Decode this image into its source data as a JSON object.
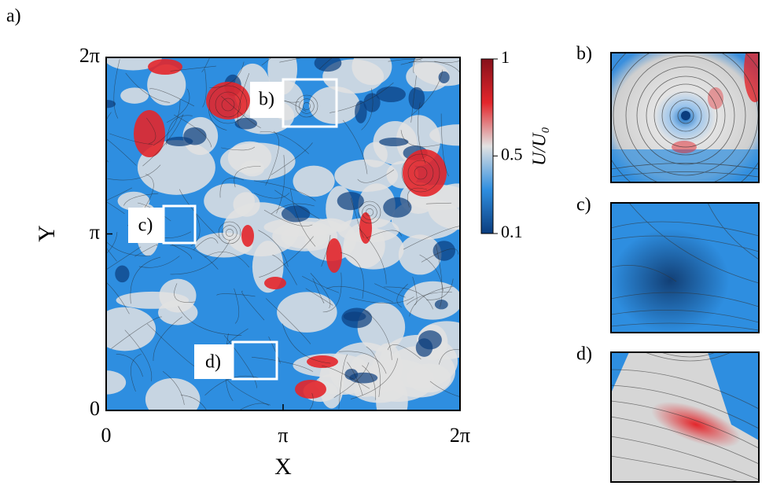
{
  "chart_data": {
    "type": "field",
    "panel_label": "a)",
    "xlabel": "X",
    "ylabel": "Y",
    "xlim": [
      0,
      6.28319
    ],
    "ylim": [
      0,
      6.28319
    ],
    "xticks": [
      0,
      {
        "value": 3.14159,
        "label": "π"
      },
      {
        "value": 6.28319,
        "label": "2π"
      }
    ],
    "yticks": [
      0,
      {
        "value": 3.14159,
        "label": "π"
      },
      {
        "value": 6.28319,
        "label": "2π"
      }
    ],
    "colorbar": {
      "label": "U/U₀",
      "clim": [
        0.1,
        1
      ],
      "ticks": [
        0.1,
        0.5,
        1
      ],
      "colors": [
        "#0b3d7e",
        "#2e8ee0",
        "#e2e2e2",
        "#e3262b",
        "#86101a"
      ]
    },
    "insets": [
      {
        "label": "b)"
      },
      {
        "label": "c)"
      },
      {
        "label": "d)"
      }
    ]
  }
}
